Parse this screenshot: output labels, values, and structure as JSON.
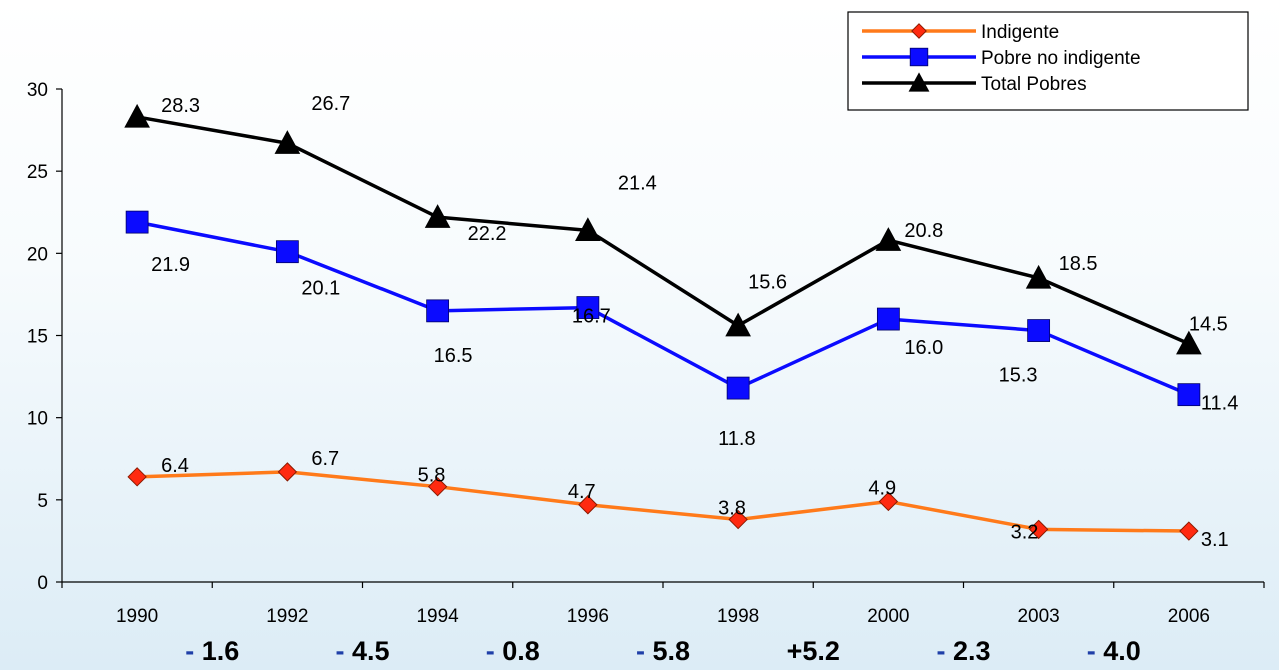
{
  "chart_data": {
    "type": "line",
    "categories": [
      "1990",
      "1992",
      "1994",
      "1996",
      "1998",
      "2000",
      "2003",
      "2006"
    ],
    "ylim": [
      0,
      30
    ],
    "yticks": [
      "0",
      "5",
      "10",
      "15",
      "20",
      "25",
      "30"
    ],
    "legend_position": "top-right",
    "series": [
      {
        "name": "Indigente",
        "values": [
          6.4,
          6.7,
          5.8,
          4.7,
          3.8,
          4.9,
          3.2,
          3.1
        ],
        "labels": [
          "6.4",
          "6.7",
          "5.8",
          "4.7",
          "3.8",
          "4.9",
          "3.2",
          "3.1"
        ],
        "color": "#ff7a1a",
        "marker_fill": "#ff2a10",
        "marker": "diamond"
      },
      {
        "name": "Pobre no indigente",
        "values": [
          21.9,
          20.1,
          16.5,
          16.7,
          11.8,
          16.0,
          15.3,
          11.4
        ],
        "labels": [
          "21.9",
          "20.1",
          "16.5",
          "16.7",
          "11.8",
          "16.0",
          "15.3",
          "11.4"
        ],
        "color": "#0b0bff",
        "marker_fill": "#0b0bff",
        "marker": "square"
      },
      {
        "name": "Total Pobres",
        "values": [
          28.3,
          26.7,
          22.2,
          21.4,
          15.6,
          20.8,
          18.5,
          14.5
        ],
        "labels": [
          "28.3",
          "26.7",
          "22.2",
          "21.4",
          "15.6",
          "20.8",
          "18.5",
          "14.5"
        ],
        "color": "#000000",
        "marker_fill": "#000000",
        "marker": "triangle"
      }
    ],
    "period_changes": [
      {
        "sign": "-",
        "value": "1.6"
      },
      {
        "sign": "-",
        "value": "4.5"
      },
      {
        "sign": "-",
        "value": "0.8"
      },
      {
        "sign": "-",
        "value": "5.8"
      },
      {
        "sign": "+",
        "value": "5.2"
      },
      {
        "sign": "-",
        "value": "2.3"
      },
      {
        "sign": "-",
        "value": "4.0"
      }
    ],
    "colors": {
      "axis": "#000000",
      "minus_sign": "#1f3fa8",
      "change_value": "#000000"
    }
  }
}
